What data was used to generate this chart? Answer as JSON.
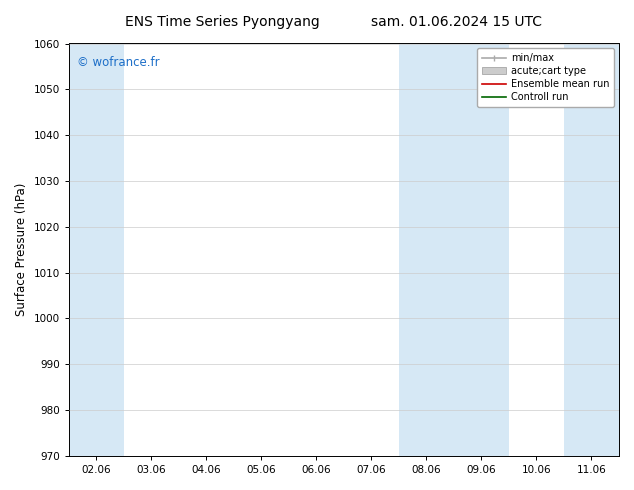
{
  "title_left": "ENS Time Series Pyongyang",
  "title_right": "sam. 01.06.2024 15 UTC",
  "ylabel": "Surface Pressure (hPa)",
  "ylim": [
    970,
    1060
  ],
  "yticks": [
    970,
    980,
    990,
    1000,
    1010,
    1020,
    1030,
    1040,
    1050,
    1060
  ],
  "xlabel_ticks": [
    "02.06",
    "03.06",
    "04.06",
    "05.06",
    "06.06",
    "07.06",
    "08.06",
    "09.06",
    "10.06",
    "11.06"
  ],
  "x_positions": [
    0,
    1,
    2,
    3,
    4,
    5,
    6,
    7,
    8,
    9
  ],
  "x_min": -0.5,
  "x_max": 9.5,
  "shaded_bands": [
    {
      "xmin": -0.5,
      "xmax": 0.5
    },
    {
      "xmin": 5.5,
      "xmax": 7.5
    },
    {
      "xmin": 8.5,
      "xmax": 9.5
    }
  ],
  "band_color": "#d6e8f5",
  "background_color": "#ffffff",
  "watermark_text": "© wofrance.fr",
  "watermark_color": "#1e6fc8",
  "grid_color": "#cccccc",
  "tick_fontsize": 7.5,
  "label_fontsize": 8.5,
  "title_fontsize": 10,
  "legend_fontsize": 7
}
